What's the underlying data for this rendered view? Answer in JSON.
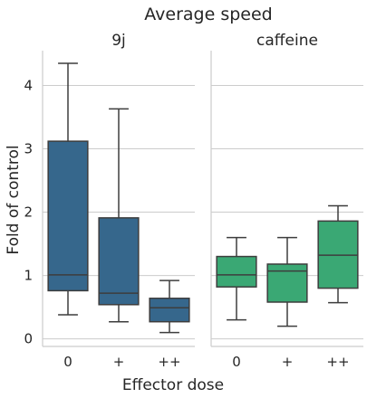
{
  "chart_data": {
    "type": "box",
    "title": "Average speed",
    "xlabel": "Effector dose",
    "ylabel": "Fold of control",
    "ylim": [
      -0.12,
      4.55
    ],
    "yticks": [
      0,
      1,
      2,
      3,
      4
    ],
    "grid": "horizontal",
    "categories": [
      "0",
      "+",
      "++"
    ],
    "panels": [
      {
        "name": "9j",
        "color": "#36678c",
        "boxes": [
          {
            "category": "0",
            "whisker_low": 0.38,
            "q1": 0.76,
            "median": 1.01,
            "q3": 3.12,
            "whisker_high": 4.35
          },
          {
            "category": "+",
            "whisker_low": 0.27,
            "q1": 0.54,
            "median": 0.72,
            "q3": 1.91,
            "whisker_high": 3.63
          },
          {
            "category": "++",
            "whisker_low": 0.1,
            "q1": 0.27,
            "median": 0.49,
            "q3": 0.64,
            "whisker_high": 0.92
          }
        ]
      },
      {
        "name": "caffeine",
        "color": "#3aa874",
        "boxes": [
          {
            "category": "0",
            "whisker_low": 0.3,
            "q1": 0.82,
            "median": 1.01,
            "q3": 1.3,
            "whisker_high": 1.6
          },
          {
            "category": "+",
            "whisker_low": 0.2,
            "q1": 0.58,
            "median": 1.07,
            "q3": 1.18,
            "whisker_high": 1.6
          },
          {
            "category": "++",
            "whisker_low": 0.57,
            "q1": 0.8,
            "median": 1.32,
            "q3": 1.86,
            "whisker_high": 2.1
          }
        ]
      }
    ]
  }
}
